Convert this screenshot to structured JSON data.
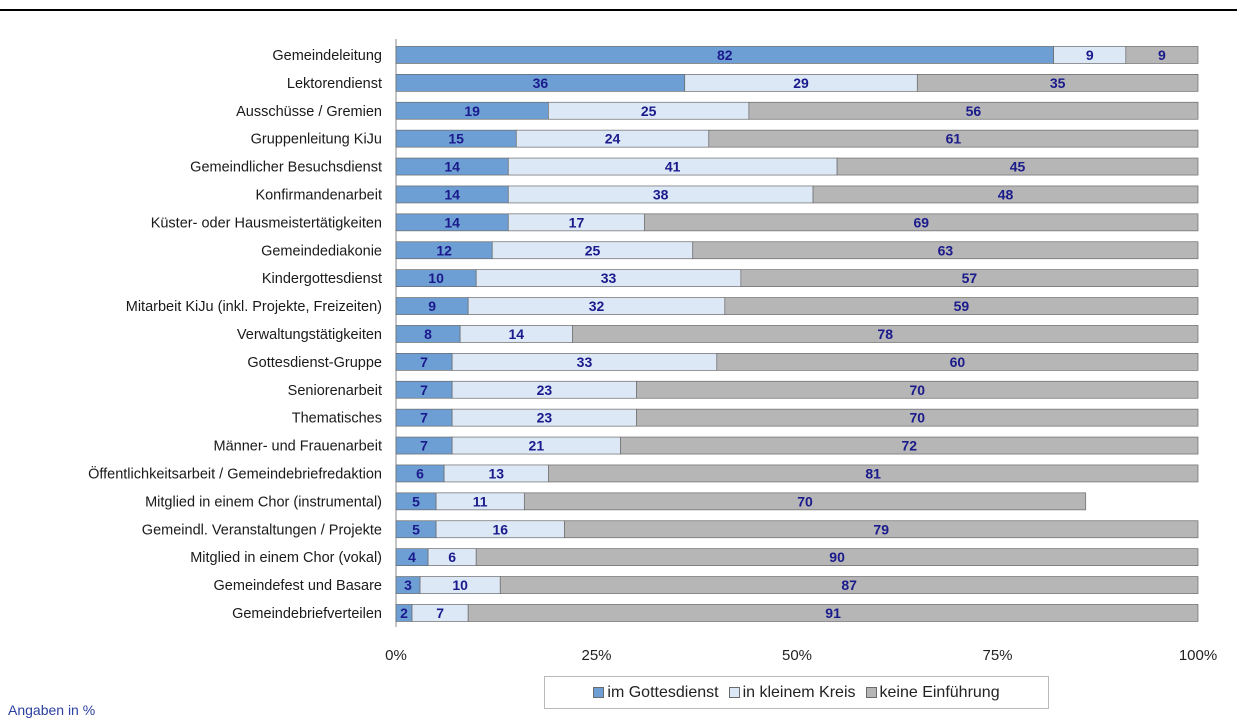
{
  "chart_data": {
    "type": "bar",
    "orientation": "horizontal",
    "stacked": "percent",
    "categories": [
      "Gemeindeleitung",
      "Lektorendienst",
      "Ausschüsse / Gremien",
      "Gruppenleitung KiJu",
      "Gemeindlicher Besuchsdienst",
      "Konfirmandenarbeit",
      "Küster-  oder Hausmeistertätigkeiten",
      "Gemeindediakonie",
      "Kindergottesdienst",
      "Mitarbeit KiJu (inkl. Projekte, Freizeiten)",
      "Verwaltungstätigkeiten",
      "Gottesdienst-Gruppe",
      "Seniorenarbeit",
      "Thematisches",
      "Männer- und Frauenarbeit",
      "Öffentlichkeitsarbeit / Gemeindebriefredaktion",
      "Mitglied in einem Chor (instrumental)",
      "Gemeindl. Veranstaltungen / Projekte",
      "Mitglied in einem Chor (vokal)",
      "Gemeindefest und Basare",
      "Gemeindebriefverteilen"
    ],
    "series": [
      {
        "name": "im Gottesdienst",
        "color": "#6e9fd4",
        "values": [
          82,
          36,
          19,
          15,
          14,
          14,
          14,
          12,
          10,
          9,
          8,
          7,
          7,
          7,
          7,
          6,
          5,
          5,
          4,
          3,
          2
        ]
      },
      {
        "name": "in kleinem Kreis",
        "color": "#dde8f6",
        "values": [
          9,
          29,
          25,
          24,
          41,
          38,
          17,
          25,
          33,
          32,
          14,
          33,
          23,
          23,
          21,
          13,
          11,
          16,
          6,
          10,
          7
        ]
      },
      {
        "name": "keine Einführung",
        "color": "#b6b6b6",
        "values": [
          9,
          35,
          56,
          61,
          45,
          48,
          69,
          63,
          57,
          59,
          78,
          60,
          70,
          70,
          72,
          81,
          70,
          79,
          90,
          87,
          91
        ]
      }
    ],
    "xlim": [
      0,
      100
    ],
    "x_tick_labels": [
      "0%",
      "25%",
      "50%",
      "75%",
      "100%"
    ],
    "label_color": "#1a1a8c",
    "legend_position": "bottom",
    "note": "Angaben in %"
  }
}
